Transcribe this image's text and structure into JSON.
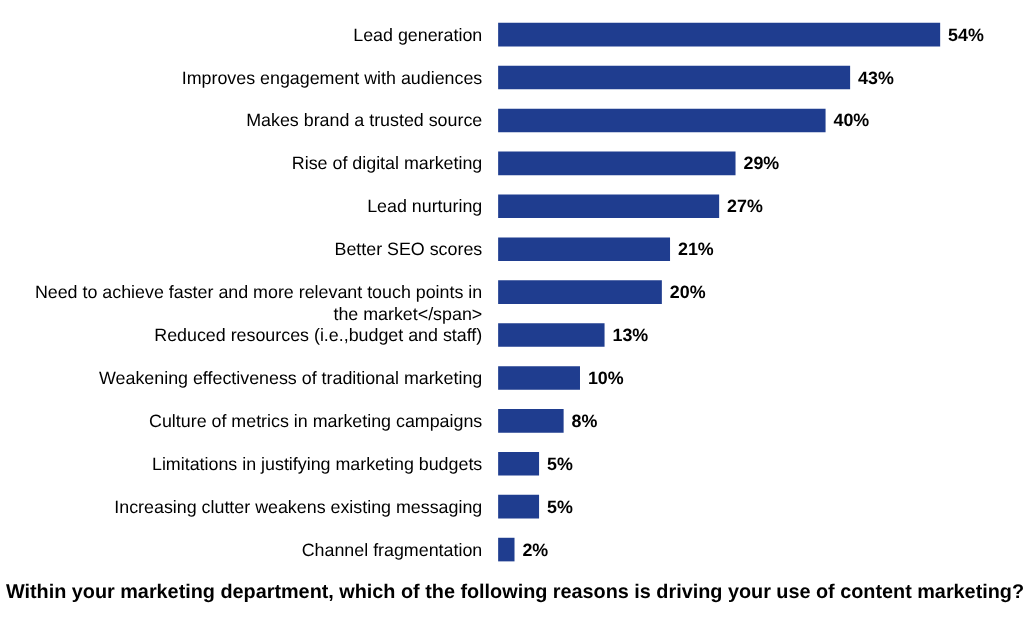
{
  "chart_data": {
    "type": "bar",
    "orientation": "horizontal",
    "title": "Within your marketing department, which of the following reasons is driving your use of content marketing?",
    "categories": [
      "Lead generation",
      "Improves engagement with audiences",
      "Makes brand a trusted source",
      "Rise of digital marketing",
      "Lead nurturing",
      "Better SEO scores",
      "Need to achieve faster and more relevant touch points in the market</span>",
      "Reduced resources (i.e.,budget and staff)",
      "Weakening effectiveness of traditional marketing",
      "Culture of metrics in marketing campaigns",
      "Limitations in justifying marketing budgets",
      "Increasing clutter weakens existing messaging",
      "Channel fragmentation"
    ],
    "values": [
      54,
      43,
      40,
      29,
      27,
      21,
      20,
      13,
      10,
      8,
      5,
      5,
      2
    ],
    "value_labels": [
      "54%",
      "43%",
      "40%",
      "29%",
      "27%",
      "21%",
      "20%",
      "13%",
      "10%",
      "8%",
      "5%",
      "5%",
      "2%"
    ],
    "color": "#1f3d8f"
  }
}
